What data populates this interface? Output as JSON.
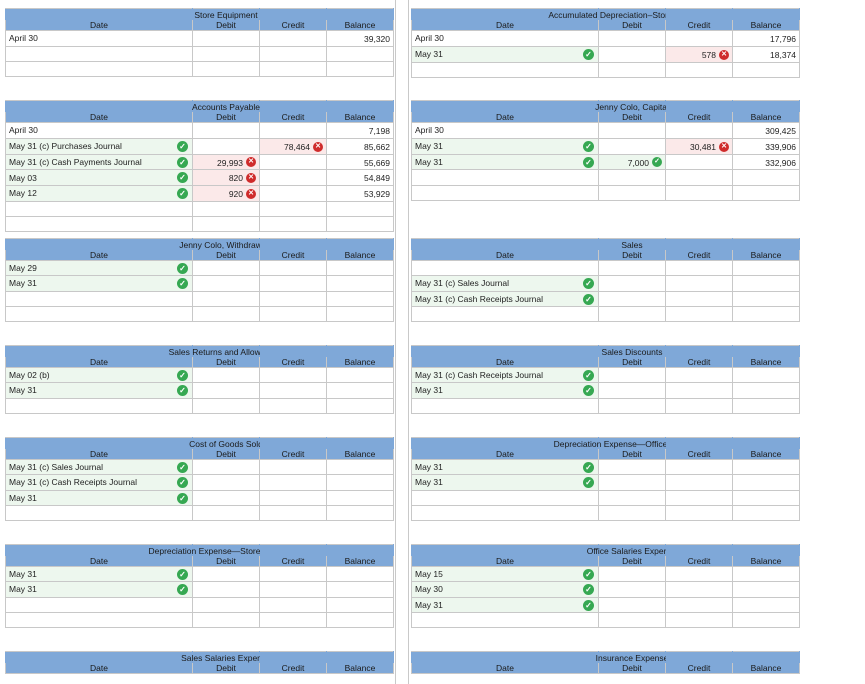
{
  "columns": {
    "date": "Date",
    "debit": "Debit",
    "credit": "Credit",
    "balance": "Balance"
  },
  "accounts": [
    {
      "title": "Store Equipment",
      "rows": [
        {
          "date": "April 30",
          "debit": "",
          "credit": "",
          "balance": "39,320"
        },
        {
          "date": "",
          "debit": "",
          "credit": "",
          "balance": ""
        }
      ]
    },
    {
      "title": "Accumulated Depreciation–Store Equipment",
      "rows": [
        {
          "date": "April 30",
          "debit": "",
          "credit": "",
          "balance": "17,796"
        },
        {
          "date": "May 31",
          "date_check": true,
          "debit": "",
          "credit": "578",
          "credit_mark": "error",
          "balance": "18,374"
        }
      ]
    },
    {
      "title": "Accounts Payable",
      "rows": [
        {
          "date": "April 30",
          "debit": "",
          "credit": "",
          "balance": "7,198"
        },
        {
          "date": "May 31 (c) Purchases Journal",
          "date_check": true,
          "debit": "",
          "credit": "78,464",
          "credit_mark": "error",
          "balance": "85,662"
        },
        {
          "date": "May 31 (c) Cash Payments Journal",
          "date_check": true,
          "debit": "29,993",
          "debit_mark": "error",
          "credit": "",
          "balance": "55,669"
        },
        {
          "date": "May 03",
          "date_check": true,
          "debit": "820",
          "debit_mark": "error",
          "credit": "",
          "balance": "54,849"
        },
        {
          "date": "May 12",
          "date_check": true,
          "debit": "920",
          "debit_mark": "error",
          "credit": "",
          "balance": "53,929"
        },
        {
          "date": "",
          "debit": "",
          "credit": "",
          "balance": ""
        }
      ]
    },
    {
      "title": "Jenny Colo, Capital",
      "rows": [
        {
          "date": "April 30",
          "debit": "",
          "credit": "",
          "balance": "309,425"
        },
        {
          "date": "May 31",
          "date_check": true,
          "debit": "",
          "credit": "30,481",
          "credit_mark": "error",
          "balance": "339,906"
        },
        {
          "date": "May 31",
          "date_check": true,
          "debit": "7,000",
          "debit_mark": "ok",
          "credit": "",
          "balance": "332,906"
        }
      ]
    },
    {
      "title": "Jenny Colo, Withdrawals",
      "rows": [
        {
          "date": "May 29",
          "date_check": true,
          "debit": "",
          "credit": "",
          "balance": ""
        },
        {
          "date": "May 31",
          "date_check": true,
          "debit": "",
          "credit": "",
          "balance": ""
        }
      ]
    },
    {
      "title": "Sales",
      "rows": [
        {
          "date": "",
          "debit": "",
          "credit": "",
          "balance": ""
        },
        {
          "date": "May 31 (c) Sales Journal",
          "date_check": true,
          "debit": "",
          "credit": "",
          "balance": ""
        },
        {
          "date": "May 31 (c) Cash Receipts Journal",
          "date_check": true,
          "debit": "",
          "credit": "",
          "balance": ""
        }
      ]
    },
    {
      "title": "Sales Returns and Allowances",
      "rows": [
        {
          "date": "May 02 (b)",
          "date_check": true,
          "debit": "",
          "credit": "",
          "balance": ""
        },
        {
          "date": "May 31",
          "date_check": true,
          "debit": "",
          "credit": "",
          "balance": ""
        }
      ]
    },
    {
      "title": "Sales Discounts",
      "rows": [
        {
          "date": "May 31 (c) Cash Receipts Journal",
          "date_check": true,
          "debit": "",
          "credit": "",
          "balance": ""
        },
        {
          "date": "May 31",
          "date_check": true,
          "debit": "",
          "credit": "",
          "balance": ""
        }
      ]
    },
    {
      "title": "Cost of Goods Sold",
      "rows": [
        {
          "date": "May 31 (c) Sales Journal",
          "date_check": true,
          "debit": "",
          "credit": "",
          "balance": ""
        },
        {
          "date": "May 31 (c) Cash Receipts Journal",
          "date_check": true,
          "debit": "",
          "credit": "",
          "balance": ""
        },
        {
          "date": "May 31",
          "date_check": true,
          "debit": "",
          "credit": "",
          "balance": ""
        }
      ]
    },
    {
      "title": "Depreciation Expense—Office Equipment",
      "rows": [
        {
          "date": "May 31",
          "date_check": true,
          "debit": "",
          "credit": "",
          "balance": ""
        },
        {
          "date": "May 31",
          "date_check": true,
          "debit": "",
          "credit": "",
          "balance": ""
        }
      ]
    },
    {
      "title": "Depreciation Expense—Store Equipment",
      "rows": [
        {
          "date": "May 31",
          "date_check": true,
          "debit": "",
          "credit": "",
          "balance": ""
        },
        {
          "date": "May 31",
          "date_check": true,
          "debit": "",
          "credit": "",
          "balance": ""
        }
      ]
    },
    {
      "title": "Office Salaries Expense",
      "rows": [
        {
          "date": "May 15",
          "date_check": true,
          "debit": "",
          "credit": "",
          "balance": ""
        },
        {
          "date": "May 30",
          "date_check": true,
          "debit": "",
          "credit": "",
          "balance": ""
        },
        {
          "date": "May 31",
          "date_check": true,
          "debit": "",
          "credit": "",
          "balance": ""
        }
      ]
    },
    {
      "title": "Sales Salaries Expense",
      "rows": []
    },
    {
      "title": "Insurance Expense",
      "rows": []
    }
  ]
}
